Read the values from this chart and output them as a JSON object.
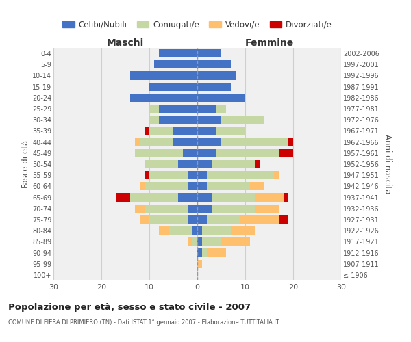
{
  "age_groups": [
    "100+",
    "95-99",
    "90-94",
    "85-89",
    "80-84",
    "75-79",
    "70-74",
    "65-69",
    "60-64",
    "55-59",
    "50-54",
    "45-49",
    "40-44",
    "35-39",
    "30-34",
    "25-29",
    "20-24",
    "15-19",
    "10-14",
    "5-9",
    "0-4"
  ],
  "birth_years": [
    "≤ 1906",
    "1907-1911",
    "1912-1916",
    "1917-1921",
    "1922-1926",
    "1927-1931",
    "1932-1936",
    "1937-1941",
    "1942-1946",
    "1947-1951",
    "1952-1956",
    "1957-1961",
    "1962-1966",
    "1967-1971",
    "1972-1976",
    "1977-1981",
    "1982-1986",
    "1987-1991",
    "1992-1996",
    "1997-2001",
    "2002-2006"
  ],
  "colors": {
    "celibi": "#4472c4",
    "coniugati": "#c5d8a4",
    "vedovi": "#ffc06e",
    "divorziati": "#cc0000",
    "background": "#f0f0f0",
    "grid": "#cccccc"
  },
  "maschi": {
    "celibi": [
      0,
      0,
      0,
      0,
      1,
      2,
      2,
      4,
      2,
      2,
      4,
      3,
      5,
      5,
      8,
      8,
      14,
      10,
      14,
      9,
      8
    ],
    "coniugati": [
      0,
      0,
      0,
      1,
      5,
      8,
      9,
      10,
      9,
      8,
      7,
      10,
      7,
      5,
      2,
      2,
      0,
      0,
      0,
      0,
      0
    ],
    "vedovi": [
      0,
      0,
      0,
      1,
      2,
      2,
      2,
      0,
      1,
      0,
      0,
      0,
      1,
      0,
      0,
      0,
      0,
      0,
      0,
      0,
      0
    ],
    "divorziati": [
      0,
      0,
      0,
      0,
      0,
      0,
      0,
      3,
      0,
      1,
      0,
      0,
      0,
      1,
      0,
      0,
      0,
      0,
      0,
      0,
      0
    ]
  },
  "femmine": {
    "celibi": [
      0,
      0,
      1,
      1,
      1,
      2,
      3,
      3,
      2,
      2,
      3,
      4,
      5,
      4,
      5,
      4,
      10,
      7,
      8,
      7,
      5
    ],
    "coniugati": [
      0,
      0,
      1,
      4,
      6,
      7,
      9,
      9,
      9,
      14,
      9,
      13,
      14,
      6,
      9,
      2,
      0,
      0,
      0,
      0,
      0
    ],
    "vedovi": [
      0,
      1,
      4,
      6,
      5,
      8,
      5,
      6,
      3,
      1,
      0,
      0,
      0,
      0,
      0,
      0,
      0,
      0,
      0,
      0,
      0
    ],
    "divorziati": [
      0,
      0,
      0,
      0,
      0,
      2,
      0,
      1,
      0,
      0,
      1,
      3,
      1,
      0,
      0,
      0,
      0,
      0,
      0,
      0,
      0
    ]
  },
  "xlim": 30,
  "title_main": "Popolazione per età, sesso e stato civile - 2007",
  "title_sub": "COMUNE DI FIERA DI PRIMIERO (TN) - Dati ISTAT 1° gennaio 2007 - Elaborazione TUTTITALIA.IT",
  "ylabel_left": "Fasce di età",
  "ylabel_right": "Anni di nascita",
  "xlabel_maschi": "Maschi",
  "xlabel_femmine": "Femmine",
  "legend_labels": [
    "Celibi/Nubili",
    "Coniugati/e",
    "Vedovi/e",
    "Divorziati/e"
  ]
}
